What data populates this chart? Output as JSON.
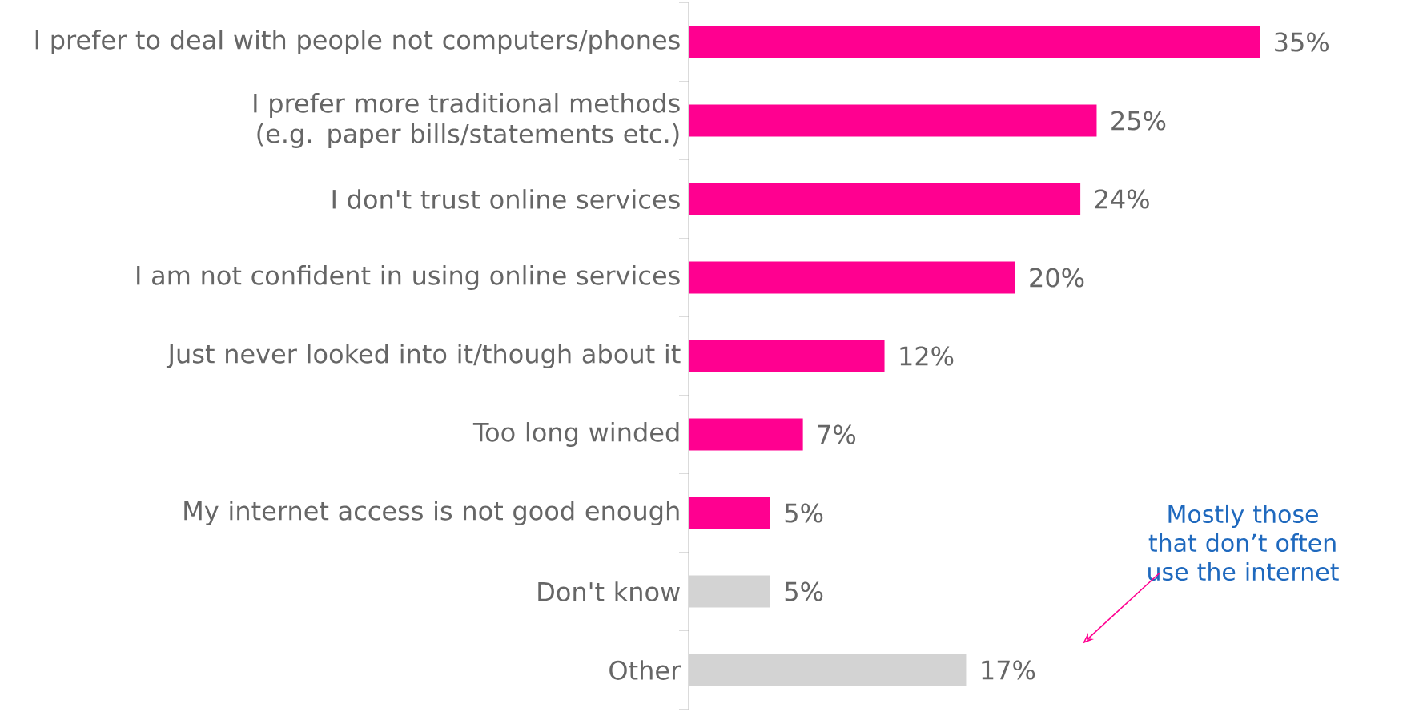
{
  "chart_data": {
    "type": "bar",
    "orientation": "horizontal",
    "categories": [
      "I prefer to deal with people not computers/phones",
      "I prefer more traditional methods (e.g. paper bills/statements etc.)",
      "I don't trust online services",
      "I am not confident in using online services",
      "Just never looked into it/though about it",
      "Too long winded",
      "My internet access is not good enough",
      "Don't know",
      "Other"
    ],
    "values": [
      35,
      25,
      24,
      20,
      12,
      7,
      5,
      5,
      17
    ],
    "colors": [
      "#ff0090",
      "#ff0090",
      "#ff0090",
      "#ff0090",
      "#ff0090",
      "#ff0090",
      "#ff0090",
      "#d3d3d3",
      "#d3d3d3"
    ],
    "value_labels": [
      "35%",
      "25%",
      "24%",
      "20%",
      "12%",
      "7%",
      "5%",
      "5%",
      "17%"
    ],
    "annotations": [
      "Mostly those that don’t often use the internet"
    ]
  }
}
